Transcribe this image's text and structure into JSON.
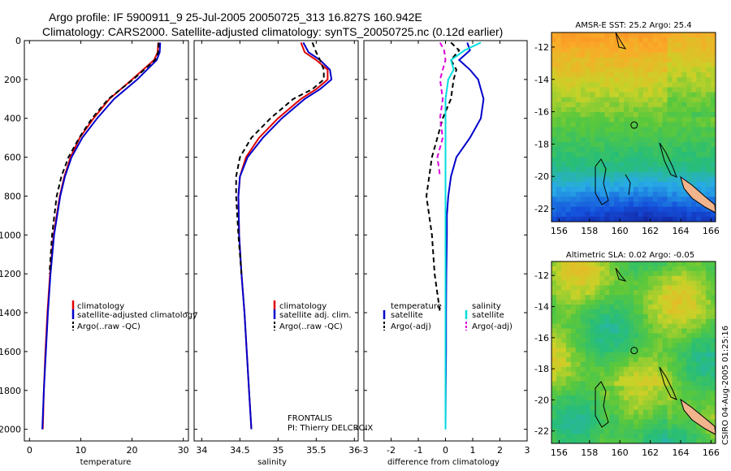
{
  "title_line1": "Argo profile: IF 5900911_9 25-Jul-2005 20050725_313 16.827S 160.942E",
  "title_line2": "Climatology: CARS2000. Satellite-adjusted climatology: synTS_20050725.nc (0.12d earlier)",
  "credit": "CSIRO 04-Aug-2005 01:25:16",
  "colors": {
    "climatology": "#e00000",
    "satellite": "#0000cc",
    "argo": "#000000",
    "salinity_diff": "#00dddd",
    "argo_salinity_diff": "#dd00dd",
    "land": "#f2b48c"
  },
  "chart_data": [
    {
      "type": "line",
      "name": "temperature-profile",
      "xlabel": "temperature",
      "ylabel": "",
      "xlim": [
        -1,
        31
      ],
      "ylim": [
        2060,
        0
      ],
      "xticks": [
        0,
        10,
        20,
        30
      ],
      "yticks": [
        0,
        200,
        400,
        600,
        800,
        1000,
        1200,
        1400,
        1600,
        1800,
        2000
      ],
      "legend": [
        "climatology",
        "satellite-adjusted climatology",
        "Argo(..raw -QC)"
      ],
      "depth": [
        10,
        60,
        100,
        200,
        300,
        400,
        500,
        600,
        700,
        800,
        1000,
        1200,
        1400,
        1600,
        1800,
        2000
      ],
      "series": [
        {
          "name": "climatology",
          "color": "#e00000",
          "values": [
            25.1,
            25.0,
            24.3,
            20.0,
            15.6,
            12.5,
            9.8,
            8.0,
            6.8,
            5.9,
            4.7,
            4.0,
            3.5,
            3.1,
            2.8,
            2.6
          ]
        },
        {
          "name": "satellite-adjusted climatology",
          "color": "#0000cc",
          "values": [
            25.5,
            25.4,
            24.8,
            21.0,
            16.5,
            13.2,
            10.3,
            8.2,
            6.9,
            6.0,
            4.8,
            4.1,
            3.6,
            3.2,
            2.8,
            2.5
          ]
        },
        {
          "name": "Argo(..raw -QC)",
          "color": "#000000",
          "dashed": true,
          "values": [
            25.2,
            25.1,
            24.5,
            20.2,
            15.4,
            12.2,
            9.7,
            7.6,
            6.2,
            5.3,
            4.4,
            3.9
          ]
        }
      ]
    },
    {
      "type": "line",
      "name": "salinity-profile",
      "xlabel": "salinity",
      "xlim": [
        33.9,
        36.05
      ],
      "ylim": [
        2060,
        0
      ],
      "xticks": [
        34,
        34.5,
        35,
        35.5,
        36
      ],
      "legend": [
        "climatology",
        "satellite adj. clim.",
        "Argo(..raw -QC)"
      ],
      "annotation": [
        "FRONTALIS",
        "PI: Thierry DELCROIX"
      ],
      "depth": [
        10,
        60,
        100,
        150,
        200,
        250,
        300,
        400,
        500,
        600,
        700,
        800,
        1000,
        1200,
        1400,
        1600,
        1800,
        2000
      ],
      "series": [
        {
          "name": "climatology",
          "color": "#e00000",
          "values": [
            35.3,
            35.35,
            35.5,
            35.65,
            35.65,
            35.5,
            35.3,
            35.0,
            34.75,
            34.58,
            34.5,
            34.48,
            34.49,
            34.52,
            34.56,
            34.59,
            34.62,
            34.65
          ]
        },
        {
          "name": "satellite adj. clim.",
          "color": "#0000cc",
          "values": [
            35.33,
            35.4,
            35.55,
            35.68,
            35.7,
            35.55,
            35.35,
            35.05,
            34.8,
            34.6,
            34.5,
            34.48,
            34.49,
            34.52,
            34.56,
            34.59,
            34.62,
            34.65
          ]
        },
        {
          "name": "Argo(..raw -QC)",
          "color": "#000000",
          "dashed": true,
          "values": [
            35.45,
            35.5,
            35.55,
            35.6,
            35.6,
            35.45,
            35.2,
            34.9,
            34.65,
            34.5,
            34.45,
            34.45,
            34.48,
            34.52
          ]
        }
      ]
    },
    {
      "type": "line",
      "name": "difference-profile",
      "xlabel": "difference from climatology",
      "xlim": [
        -3,
        3
      ],
      "ylim": [
        2060,
        0
      ],
      "xticks": [
        -3,
        -2,
        -1,
        0,
        1,
        2,
        3
      ],
      "legend_temperature": [
        "temperature",
        "satellite",
        "Argo(-adj)"
      ],
      "legend_salinity": [
        "salinity",
        "satellite",
        "Argo(-adj)"
      ],
      "depth": [
        10,
        50,
        100,
        150,
        200,
        300,
        400,
        500,
        600,
        700,
        800,
        900,
        1000,
        1200,
        1400,
        1600,
        1800,
        2000
      ],
      "series": [
        {
          "name": "temperature satellite",
          "color": "#0000cc",
          "values": [
            0.8,
            0.9,
            0.5,
            0.9,
            1.2,
            1.4,
            1.3,
            0.9,
            0.4,
            0.2,
            0.1,
            0.05,
            0.05,
            0.03,
            0.02,
            0.02,
            0.01,
            0.0
          ]
        },
        {
          "name": "temperature Argo(-adj)",
          "color": "#000000",
          "dashed": true,
          "values": [
            0.2,
            0.5,
            0.2,
            0.4,
            0.3,
            0.2,
            -0.1,
            -0.3,
            -0.5,
            -0.6,
            -0.7,
            -0.6,
            -0.5,
            -0.4,
            -0.2
          ]
        },
        {
          "name": "salinity satellite",
          "color": "#00dddd",
          "values": [
            1.3,
            0.7,
            0.2,
            0.3,
            0.1,
            0.0,
            0.0,
            0.0,
            0.0,
            0.0,
            0.0,
            0.0,
            0.0,
            0.0,
            0.0,
            0.0,
            0.0,
            0.0
          ]
        },
        {
          "name": "salinity Argo(-adj)",
          "color": "#dd00dd",
          "dashed": true,
          "values": [
            -0.2,
            -0.05,
            0.0,
            -0.1,
            -0.2,
            -0.1,
            -0.2,
            -0.1,
            -0.3,
            -0.2
          ]
        }
      ]
    },
    {
      "type": "heatmap",
      "name": "sst-map",
      "title": "AMSR-E SST: 25.2 Argo: 25.4",
      "xlim": [
        155.5,
        166.3
      ],
      "ylim": [
        -22.8,
        -11.1
      ],
      "xticks": [
        156,
        158,
        160,
        162,
        164,
        166
      ],
      "yticks": [
        -12,
        -14,
        -16,
        -18,
        -20,
        -22
      ],
      "float_position": [
        160.942,
        -16.827
      ]
    },
    {
      "type": "heatmap",
      "name": "sla-map",
      "title": "Altimetric SLA: 0.02 Argo: -0.05",
      "xlim": [
        155.5,
        166.3
      ],
      "ylim": [
        -22.8,
        -11.1
      ],
      "xticks": [
        156,
        158,
        160,
        162,
        164,
        166
      ],
      "yticks": [
        -12,
        -14,
        -16,
        -18,
        -20,
        -22
      ],
      "float_position": [
        160.942,
        -16.827
      ]
    }
  ]
}
